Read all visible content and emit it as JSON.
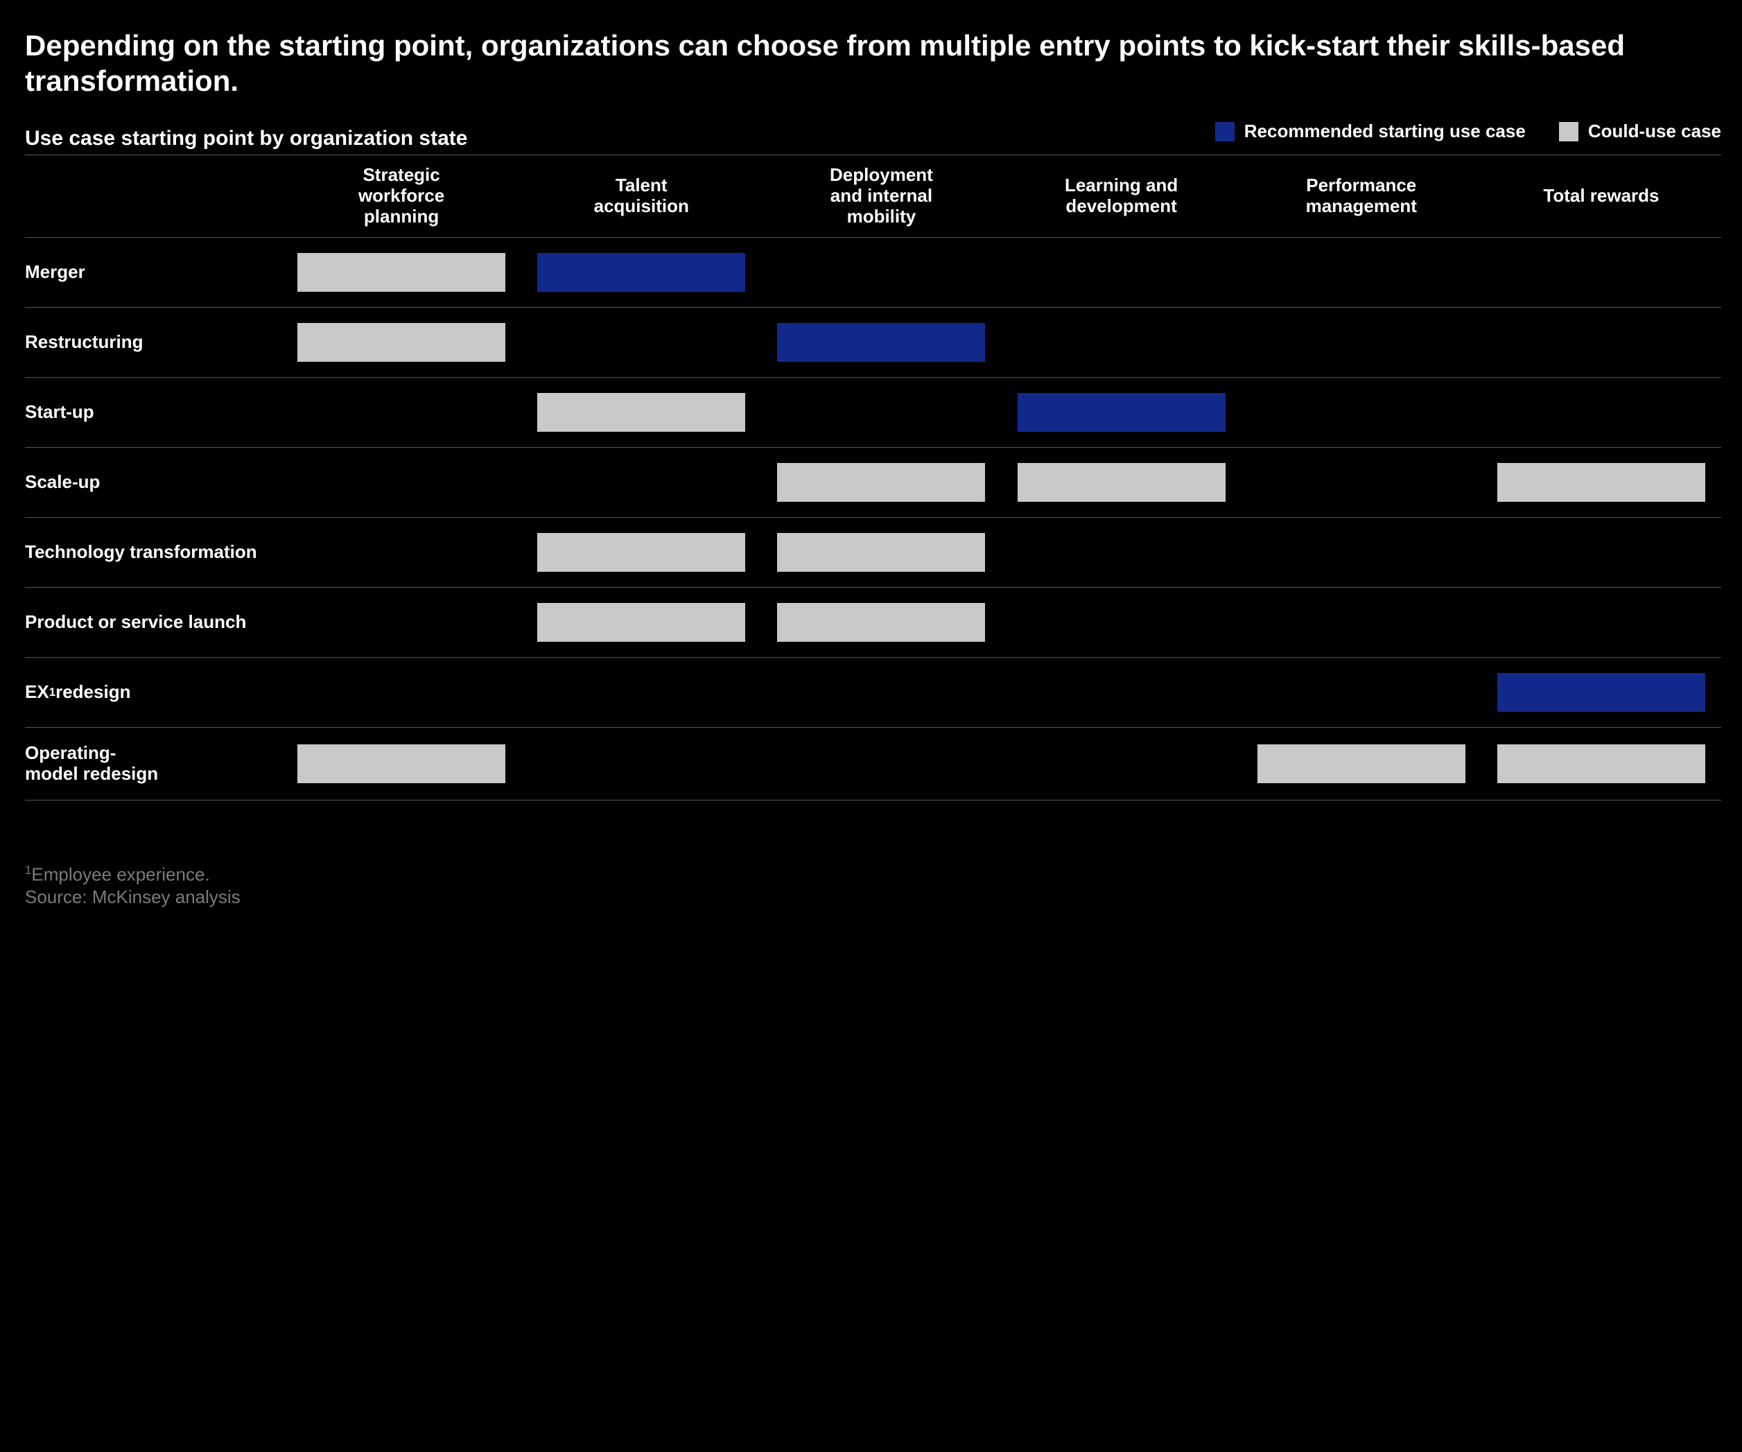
{
  "colors": {
    "background": "#000000",
    "text": "#ffffff",
    "muted": "#7a7a7a",
    "rule": "#555555",
    "recommended": "#12298c",
    "could_use": "#c7c9cb"
  },
  "title": "Depending on the starting point, organizations can choose from multiple entry points to kick-start their skills-based transformation.",
  "subtitle": "Use case starting point by organization state",
  "legend": [
    {
      "label": "Recommended starting use case",
      "color": "#12298c"
    },
    {
      "label": "Could-use case",
      "color": "#c7c9cb"
    }
  ],
  "columns": [
    "Strategic workforce planning",
    "Talent acquisition",
    "Deployment and internal mobility",
    "Learning and development",
    "Performance management",
    "Total rewards"
  ],
  "rows": [
    {
      "label_html": "Merger",
      "cells": [
        "could",
        "rec",
        "",
        "",
        "",
        ""
      ]
    },
    {
      "label_html": "Restructuring",
      "cells": [
        "could",
        "",
        "rec",
        "",
        "",
        ""
      ]
    },
    {
      "label_html": "Start-up",
      "cells": [
        "",
        "could",
        "",
        "rec",
        "",
        ""
      ]
    },
    {
      "label_html": "Scale-up",
      "cells": [
        "",
        "",
        "could",
        "could",
        "",
        "could"
      ]
    },
    {
      "label_html": "Technology transformation",
      "cells": [
        "",
        "could",
        "could",
        "",
        "",
        ""
      ]
    },
    {
      "label_html": "Product or service launch",
      "cells": [
        "",
        "could",
        "could",
        "",
        "",
        ""
      ]
    },
    {
      "label_html": "EX<sup>1</sup> redesign",
      "cells": [
        "",
        "",
        "",
        "",
        "",
        "rec"
      ]
    },
    {
      "label_html": "Operating-<br>model redesign",
      "cells": [
        "could",
        "",
        "",
        "",
        "could",
        "could"
      ]
    }
  ],
  "footnotes": [
    "<sup>1</sup>Employee experience.",
    "Source: McKinsey analysis"
  ]
}
